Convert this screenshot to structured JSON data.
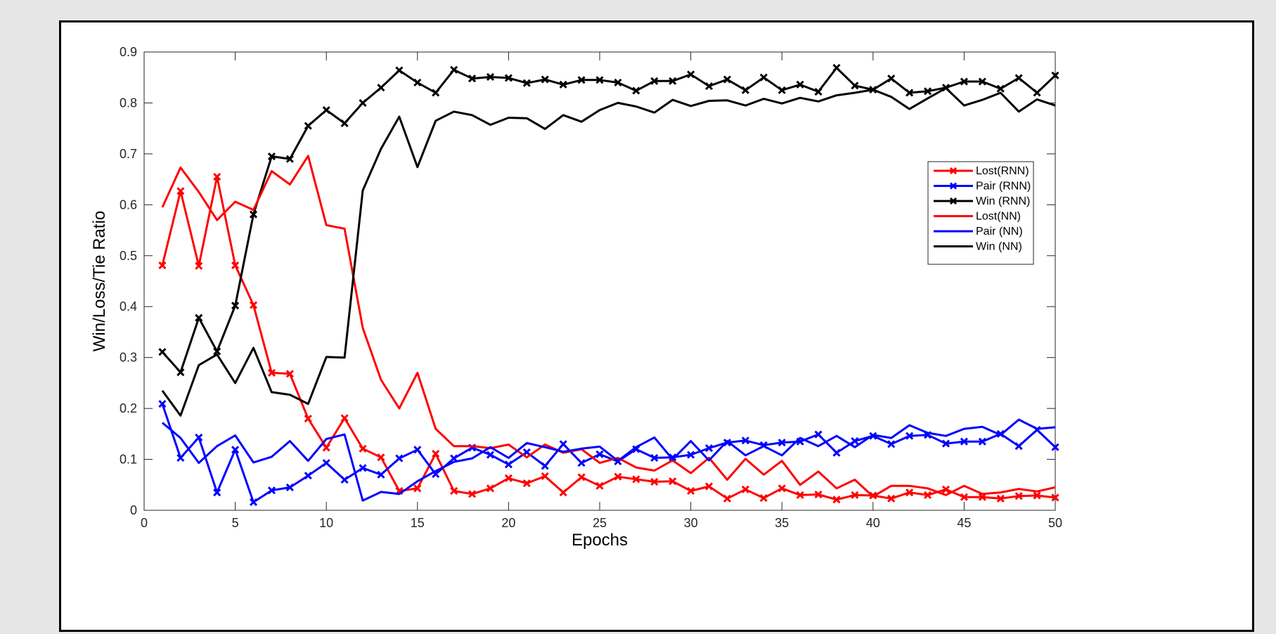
{
  "chart_data": {
    "type": "line",
    "title": "",
    "xlabel": "Epochs",
    "ylabel": "Win/Loss/Tie Ratio",
    "xlim": [
      0,
      50
    ],
    "ylim": [
      0,
      0.9
    ],
    "xticks": [
      0,
      5,
      10,
      15,
      20,
      25,
      30,
      35,
      40,
      45,
      50
    ],
    "yticks": [
      0,
      0.1,
      0.2,
      0.3,
      0.4,
      0.5,
      0.6,
      0.7,
      0.8,
      0.9
    ],
    "xtick_labels": [
      "0",
      "5",
      "10",
      "15",
      "20",
      "25",
      "30",
      "35",
      "40",
      "45",
      "50"
    ],
    "ytick_labels": [
      "0",
      "0.1",
      "0.2",
      "0.3",
      "0.4",
      "0.5",
      "0.6",
      "0.7",
      "0.8",
      "0.9"
    ],
    "grid": false,
    "legend_position": "right",
    "x": [
      1,
      2,
      3,
      4,
      5,
      6,
      7,
      8,
      9,
      10,
      11,
      12,
      13,
      14,
      15,
      16,
      17,
      18,
      19,
      20,
      21,
      22,
      23,
      24,
      25,
      26,
      27,
      28,
      29,
      30,
      31,
      32,
      33,
      34,
      35,
      36,
      37,
      38,
      39,
      40,
      41,
      42,
      43,
      44,
      45,
      46,
      47,
      48,
      49,
      50
    ],
    "series": [
      {
        "name": "Lost(RNN)",
        "color": "#ff0000",
        "marker": "x",
        "values": [
          0.481,
          0.627,
          0.48,
          0.655,
          0.481,
          0.403,
          0.27,
          0.268,
          0.18,
          0.123,
          0.181,
          0.121,
          0.104,
          0.038,
          0.043,
          0.111,
          0.038,
          0.032,
          0.043,
          0.063,
          0.053,
          0.067,
          0.035,
          0.065,
          0.048,
          0.066,
          0.061,
          0.056,
          0.057,
          0.038,
          0.047,
          0.023,
          0.041,
          0.024,
          0.043,
          0.03,
          0.031,
          0.021,
          0.03,
          0.029,
          0.023,
          0.035,
          0.03,
          0.041,
          0.026,
          0.026,
          0.023,
          0.028,
          0.029,
          0.025
        ]
      },
      {
        "name": "Pair (RNN)",
        "color": "#0000ff",
        "marker": "x",
        "values": [
          0.209,
          0.103,
          0.143,
          0.035,
          0.119,
          0.016,
          0.039,
          0.045,
          0.068,
          0.093,
          0.06,
          0.083,
          0.07,
          0.102,
          0.119,
          0.071,
          0.102,
          0.123,
          0.109,
          0.09,
          0.114,
          0.087,
          0.13,
          0.093,
          0.11,
          0.096,
          0.12,
          0.103,
          0.104,
          0.109,
          0.122,
          0.133,
          0.137,
          0.128,
          0.133,
          0.135,
          0.149,
          0.113,
          0.136,
          0.146,
          0.13,
          0.146,
          0.148,
          0.131,
          0.135,
          0.135,
          0.15,
          0.126,
          0.158,
          0.124
        ]
      },
      {
        "name": "Win (RNN)",
        "color": "#000000",
        "marker": "x",
        "values": [
          0.311,
          0.271,
          0.378,
          0.312,
          0.402,
          0.581,
          0.695,
          0.69,
          0.755,
          0.786,
          0.76,
          0.8,
          0.83,
          0.864,
          0.84,
          0.82,
          0.865,
          0.848,
          0.851,
          0.849,
          0.839,
          0.846,
          0.836,
          0.845,
          0.845,
          0.84,
          0.824,
          0.843,
          0.843,
          0.856,
          0.833,
          0.846,
          0.825,
          0.85,
          0.825,
          0.836,
          0.822,
          0.869,
          0.834,
          0.826,
          0.848,
          0.82,
          0.823,
          0.83,
          0.842,
          0.842,
          0.828,
          0.849,
          0.82,
          0.854
        ]
      },
      {
        "name": "Lost(NN)",
        "color": "#ff0000",
        "marker": "none",
        "values": [
          0.595,
          0.673,
          0.625,
          0.57,
          0.606,
          0.59,
          0.666,
          0.64,
          0.696,
          0.56,
          0.553,
          0.358,
          0.256,
          0.2,
          0.27,
          0.16,
          0.126,
          0.126,
          0.122,
          0.129,
          0.104,
          0.129,
          0.113,
          0.12,
          0.093,
          0.103,
          0.084,
          0.078,
          0.098,
          0.073,
          0.103,
          0.06,
          0.101,
          0.07,
          0.097,
          0.05,
          0.076,
          0.043,
          0.06,
          0.027,
          0.048,
          0.048,
          0.043,
          0.03,
          0.048,
          0.032,
          0.035,
          0.042,
          0.037,
          0.045
        ]
      },
      {
        "name": "Pair (NN)",
        "color": "#0000ff",
        "marker": "none",
        "values": [
          0.172,
          0.142,
          0.093,
          0.126,
          0.147,
          0.094,
          0.105,
          0.136,
          0.097,
          0.14,
          0.149,
          0.019,
          0.036,
          0.032,
          0.057,
          0.077,
          0.095,
          0.102,
          0.124,
          0.103,
          0.132,
          0.124,
          0.115,
          0.121,
          0.125,
          0.097,
          0.124,
          0.143,
          0.1,
          0.136,
          0.098,
          0.136,
          0.108,
          0.126,
          0.108,
          0.142,
          0.126,
          0.146,
          0.124,
          0.148,
          0.142,
          0.167,
          0.152,
          0.146,
          0.16,
          0.164,
          0.148,
          0.178,
          0.16,
          0.163
        ]
      },
      {
        "name": "Win (NN)",
        "color": "#000000",
        "marker": "none",
        "values": [
          0.235,
          0.186,
          0.285,
          0.306,
          0.25,
          0.319,
          0.232,
          0.227,
          0.209,
          0.301,
          0.3,
          0.628,
          0.71,
          0.773,
          0.674,
          0.765,
          0.783,
          0.776,
          0.757,
          0.771,
          0.77,
          0.749,
          0.776,
          0.763,
          0.786,
          0.8,
          0.793,
          0.781,
          0.806,
          0.794,
          0.804,
          0.805,
          0.795,
          0.808,
          0.799,
          0.81,
          0.803,
          0.815,
          0.82,
          0.826,
          0.812,
          0.788,
          0.809,
          0.829,
          0.795,
          0.806,
          0.82,
          0.783,
          0.807,
          0.795
        ]
      }
    ]
  }
}
